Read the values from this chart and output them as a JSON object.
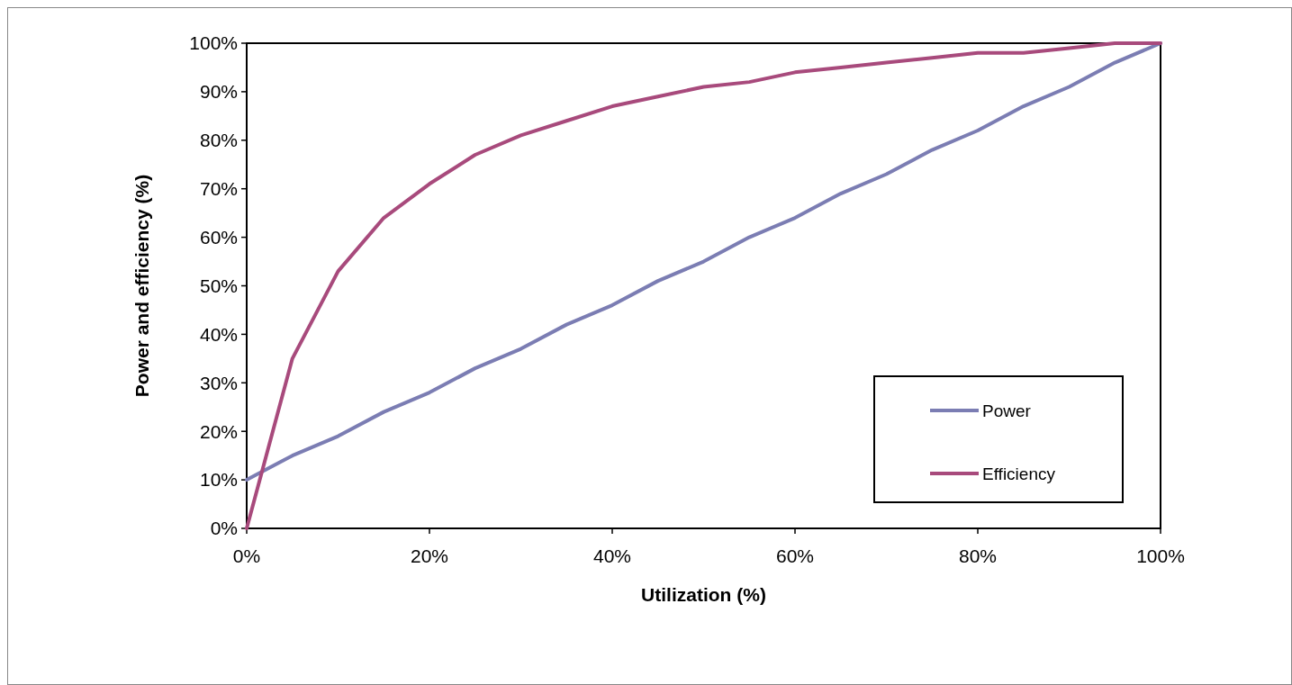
{
  "chart_data": {
    "type": "line",
    "xlabel": "Utilization (%)",
    "ylabel": "Power and efficiency (%)",
    "x": [
      0,
      5,
      10,
      15,
      20,
      25,
      30,
      35,
      40,
      45,
      50,
      55,
      60,
      65,
      70,
      75,
      80,
      85,
      90,
      95,
      100
    ],
    "series": [
      {
        "name": "Power",
        "color": "#7b7db3",
        "values": [
          10,
          15,
          19,
          24,
          28,
          33,
          37,
          42,
          46,
          51,
          55,
          60,
          64,
          69,
          73,
          78,
          82,
          87,
          91,
          96,
          100
        ]
      },
      {
        "name": "Efficiency",
        "color": "#a84a7c",
        "values": [
          0,
          35,
          53,
          64,
          71,
          77,
          81,
          84,
          87,
          89,
          91,
          92,
          94,
          95,
          96,
          97,
          98,
          98,
          99,
          100,
          100
        ]
      }
    ],
    "xlim": [
      0,
      100
    ],
    "xticks": [
      {
        "value": 0,
        "label": "0%"
      },
      {
        "value": 20,
        "label": "20%"
      },
      {
        "value": 40,
        "label": "40%"
      },
      {
        "value": 60,
        "label": "60%"
      },
      {
        "value": 80,
        "label": "80%"
      },
      {
        "value": 100,
        "label": "100%"
      }
    ],
    "ylim": [
      0,
      100
    ],
    "yticks": [
      {
        "value": 0,
        "label": "0%"
      },
      {
        "value": 10,
        "label": "10%"
      },
      {
        "value": 20,
        "label": "20%"
      },
      {
        "value": 30,
        "label": "30%"
      },
      {
        "value": 40,
        "label": "40%"
      },
      {
        "value": 50,
        "label": "50%"
      },
      {
        "value": 60,
        "label": "60%"
      },
      {
        "value": 70,
        "label": "70%"
      },
      {
        "value": 80,
        "label": "80%"
      },
      {
        "value": 90,
        "label": "90%"
      },
      {
        "value": 100,
        "label": "100%"
      }
    ],
    "grid": false,
    "legend": "bottom right",
    "marker": "none",
    "line_style": "solid"
  }
}
